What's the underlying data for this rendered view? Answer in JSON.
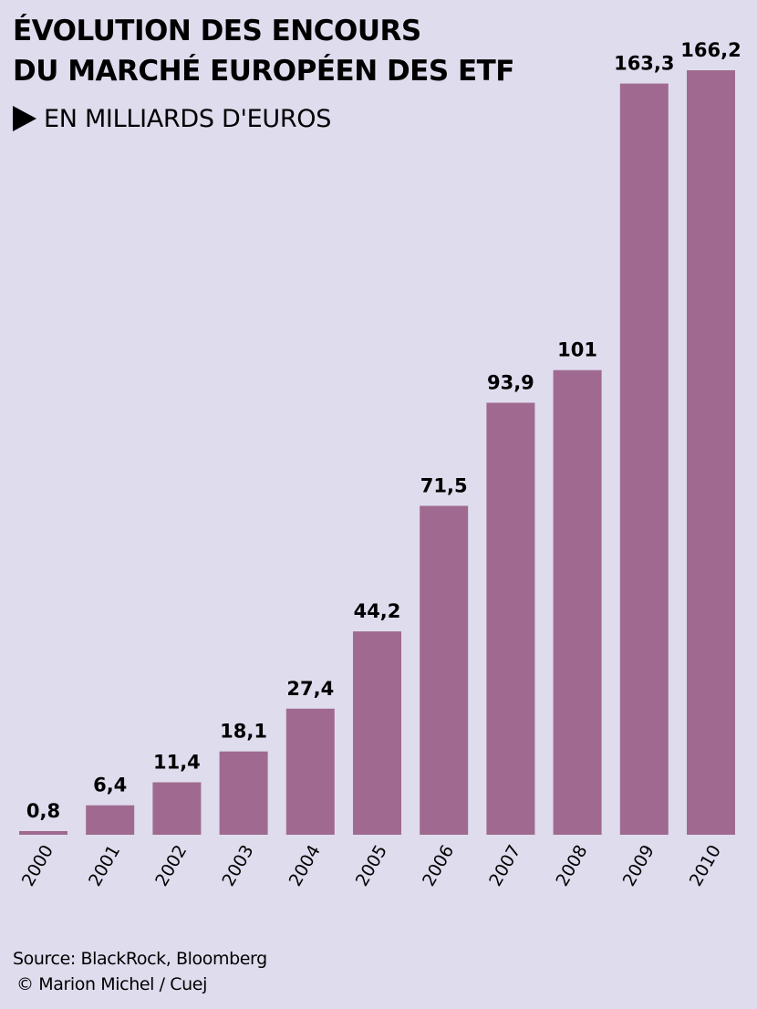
{
  "header": {
    "title_line1": "ÉVOLUTION DES ENCOURS",
    "title_line2": "DU MARCHÉ EUROPÉEN DES ETF",
    "subtitle": "EN MILLIARDS D'EUROS"
  },
  "chart_data": {
    "type": "bar",
    "title": "ÉVOLUTION DES ENCOURS DU MARCHÉ EUROPÉEN DES ETF",
    "subtitle": "EN MILLIARDS D'EUROS",
    "categories": [
      "2000",
      "2001",
      "2002",
      "2003",
      "2004",
      "2005",
      "2006",
      "2007",
      "2008",
      "2009",
      "2010"
    ],
    "values": [
      0.8,
      6.4,
      11.4,
      18.1,
      27.4,
      44.2,
      71.5,
      93.9,
      101,
      163.3,
      166.2
    ],
    "value_labels": [
      "0,8",
      "6,4",
      "11,4",
      "18,1",
      "27,4",
      "44,2",
      "71,5",
      "93,9",
      "101",
      "163,3",
      "166,2"
    ],
    "xlabel": "",
    "ylabel": "",
    "grid": false,
    "legend": "none",
    "bar_color": "#a06a90",
    "background_color": "#dedced"
  },
  "footer": {
    "source": "Source: BlackRock, Bloomberg",
    "credit": "© Marion Michel / Cuej"
  }
}
